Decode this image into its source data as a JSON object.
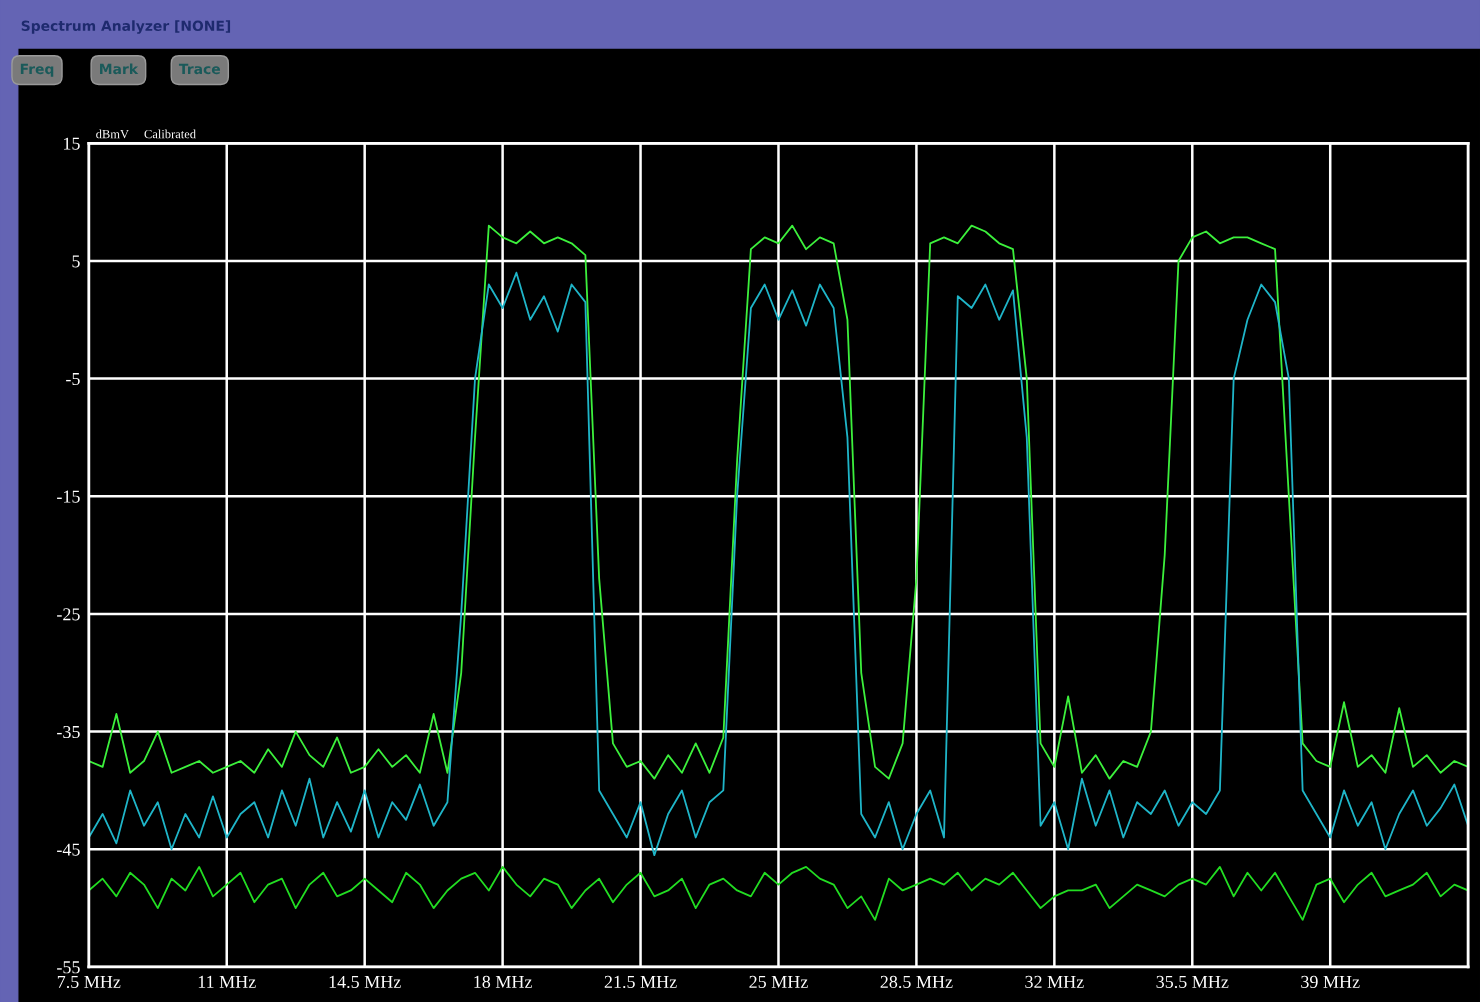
{
  "chart_data": {
    "type": "line",
    "title": "Spectrum Analyzer [NONE]",
    "ylabel": "dBmV",
    "annotations": [
      "Freq",
      "Mark",
      "Trace",
      "Calibrated"
    ],
    "x": [
      7.5,
      7.85,
      8.2,
      8.55,
      8.9,
      9.25,
      9.6,
      9.95,
      10.3,
      10.65,
      11.0,
      11.35,
      11.7,
      12.05,
      12.4,
      12.75,
      13.1,
      13.45,
      13.8,
      14.15,
      14.5,
      14.85,
      15.2,
      15.55,
      15.9,
      16.25,
      16.6,
      16.95,
      17.3,
      17.65,
      18.0,
      18.35,
      18.7,
      19.05,
      19.4,
      19.75,
      20.1,
      20.45,
      20.8,
      21.15,
      21.5,
      21.85,
      22.2,
      22.55,
      22.9,
      23.25,
      23.6,
      23.95,
      24.3,
      24.65,
      25.0,
      25.35,
      25.7,
      26.05,
      26.4,
      26.75,
      27.1,
      27.45,
      27.8,
      28.15,
      28.5,
      28.85,
      29.2,
      29.55,
      29.9,
      30.25,
      30.6,
      30.95,
      31.3,
      31.65,
      32.0,
      32.35,
      32.7,
      33.05,
      33.4,
      33.75,
      34.1,
      34.45,
      34.8,
      35.15,
      35.5,
      35.85,
      36.2,
      36.55,
      36.9,
      37.25,
      37.6,
      37.95,
      38.3,
      38.65,
      39.0,
      39.35,
      39.7,
      40.05,
      40.4,
      40.75,
      41.1,
      41.45,
      41.8,
      42.15,
      42.5
    ],
    "series": [
      {
        "color": "#3cf03c",
        "values": [
          -37.5,
          -38,
          -33.5,
          -38.5,
          -37.5,
          -35,
          -38.5,
          -38,
          -37.5,
          -38.5,
          -38,
          -37.5,
          -38.5,
          -36.5,
          -38,
          -35,
          -37,
          -38,
          -35.5,
          -38.5,
          -38,
          -36.5,
          -38,
          -37,
          -38.5,
          -33.5,
          -38.5,
          -30,
          -10,
          8,
          7,
          6.5,
          7.5,
          6.5,
          7,
          6.5,
          5.5,
          -22,
          -36,
          -38,
          -37.5,
          -39,
          -37,
          -38.5,
          -36,
          -38.5,
          -35.5,
          -12,
          6,
          7,
          6.5,
          8,
          6,
          7,
          6.5,
          0,
          -30,
          -38,
          -39,
          -36,
          -22,
          6.5,
          7,
          6.5,
          8,
          7.5,
          6.5,
          6,
          -5,
          -36,
          -38,
          -32,
          -38.5,
          -37,
          -39,
          -37.5,
          -38,
          -35,
          -20,
          5,
          7,
          7.5,
          6.5,
          7,
          7,
          6.5,
          6,
          -15,
          -36,
          -37.5,
          -38,
          -32.5,
          -38,
          -37,
          -38.5,
          -33,
          -38,
          -37,
          -38.5,
          -37.5,
          -38
        ]
      },
      {
        "color": "#1fb5c8",
        "values": [
          -44,
          -42,
          -44.5,
          -40,
          -43,
          -41,
          -45,
          -42,
          -44,
          -40.5,
          -44,
          -42,
          -41,
          -44,
          -40,
          -43,
          -39,
          -44,
          -41,
          -43.5,
          -40,
          -44,
          -41,
          -42.5,
          -39.5,
          -43,
          -41,
          -25,
          -5,
          3,
          1,
          4,
          0,
          2,
          -1,
          3,
          1.5,
          -40,
          -42,
          -44,
          -41,
          -45.5,
          -42,
          -40,
          -44,
          -41,
          -40,
          -15,
          1,
          3,
          0,
          2.5,
          -0.5,
          3,
          1,
          -10,
          -42,
          -44,
          -41,
          -45,
          -42,
          -40,
          -44,
          2,
          1,
          3,
          0,
          2.5,
          -10,
          -43,
          -41,
          -45,
          -39,
          -43,
          -40,
          -44,
          -41,
          -42,
          -40,
          -43,
          -41,
          -42,
          -40,
          -5,
          0,
          3,
          1.5,
          -5,
          -40,
          -42,
          -44,
          -40,
          -43,
          -41,
          -45,
          -42,
          -40,
          -43,
          -41.5,
          -39.5,
          -43
        ]
      },
      {
        "color": "#22dd22",
        "values": [
          -48.5,
          -47.5,
          -49,
          -47,
          -48,
          -50,
          -47.5,
          -48.5,
          -46.5,
          -49,
          -48,
          -47,
          -49.5,
          -48,
          -47.5,
          -50,
          -48,
          -47,
          -49,
          -48.5,
          -47.5,
          -48.5,
          -49.5,
          -47,
          -48,
          -50,
          -48.5,
          -47.5,
          -47,
          -48.5,
          -46.5,
          -48,
          -49,
          -47.5,
          -48,
          -50,
          -48.5,
          -47.5,
          -49.5,
          -48,
          -47,
          -49,
          -48.5,
          -47.5,
          -50,
          -48,
          -47.5,
          -48.5,
          -49,
          -47,
          -48,
          -47,
          -46.5,
          -47.5,
          -48,
          -50,
          -49,
          -51,
          -47.5,
          -48.5,
          -48,
          -47.5,
          -48,
          -47,
          -48.5,
          -47.5,
          -48,
          -47,
          -48.5,
          -50,
          -49,
          -48.5,
          -48.5,
          -48,
          -50,
          -49,
          -48,
          -48.5,
          -49,
          -48,
          -47.5,
          -48,
          -46.5,
          -49,
          -47,
          -48.5,
          -47,
          -49,
          -51,
          -48,
          -47.5,
          -49.5,
          -48,
          -47,
          -49,
          -48.5,
          -48,
          -47,
          -49,
          -48,
          -48.5
        ]
      }
    ],
    "xlim": [
      7.5,
      42.5
    ],
    "ylim": [
      -55,
      15
    ],
    "xticks": [
      {
        "value": 7.5,
        "label": "7.5 MHz"
      },
      {
        "value": 11,
        "label": "11 MHz"
      },
      {
        "value": 14.5,
        "label": "14.5 MHz"
      },
      {
        "value": 18,
        "label": "18 MHz"
      },
      {
        "value": 21.5,
        "label": "21.5 MHz"
      },
      {
        "value": 25,
        "label": "25 MHz"
      },
      {
        "value": 28.5,
        "label": "28.5 MHz"
      },
      {
        "value": 32,
        "label": "32 MHz"
      },
      {
        "value": 35.5,
        "label": "35.5 MHz"
      },
      {
        "value": 39,
        "label": "39 MHz"
      },
      {
        "value": 42.5,
        "label": null
      }
    ],
    "yticks": [
      15,
      5,
      -5,
      -15,
      -25,
      -35,
      -45,
      -55
    ],
    "grid": true
  }
}
